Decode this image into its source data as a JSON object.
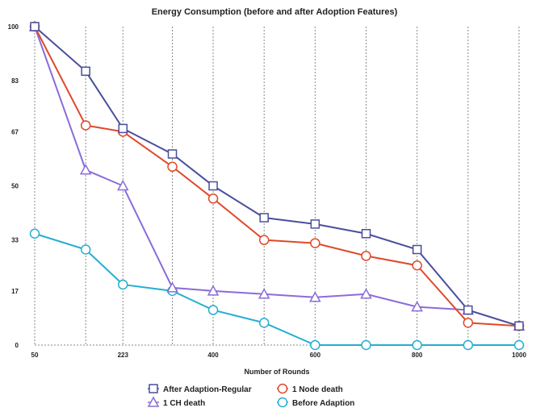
{
  "chart_data": {
    "type": "line",
    "title": "Energy Consumption (before and after Adoption Features)",
    "xlabel": "Number of Rounds",
    "ylabel": "",
    "x": [
      50,
      150,
      223,
      320,
      400,
      500,
      600,
      700,
      800,
      900,
      1000
    ],
    "x_ticks": [
      "50",
      "223",
      "400",
      "600",
      "800",
      "1000"
    ],
    "y_ticks": [
      "0",
      "17",
      "33",
      "50",
      "67",
      "83",
      "100"
    ],
    "xlim": [
      50,
      1000
    ],
    "ylim": [
      0,
      100
    ],
    "grid": true,
    "legend_position": "bottom",
    "series": [
      {
        "name": "After Adaption-Regular",
        "marker": "square",
        "color": "#4a4f9c",
        "values": [
          100,
          86,
          68,
          60,
          50,
          40,
          38,
          35,
          30,
          11,
          6
        ]
      },
      {
        "name": "1 Node death",
        "marker": "circle",
        "color": "#e0492b",
        "values": [
          100,
          69,
          67,
          56,
          46,
          33,
          32,
          28,
          25,
          7,
          6
        ]
      },
      {
        "name": "1 CH death",
        "marker": "triangle",
        "color": "#8a6cd8",
        "values": [
          100,
          55,
          50,
          18,
          17,
          16,
          15,
          16,
          12,
          11,
          6
        ]
      },
      {
        "name": "Before Adaption",
        "marker": "circle",
        "color": "#24aed0",
        "values": [
          35,
          30,
          19,
          17,
          11,
          7,
          0,
          0,
          0,
          0,
          0
        ]
      }
    ]
  }
}
